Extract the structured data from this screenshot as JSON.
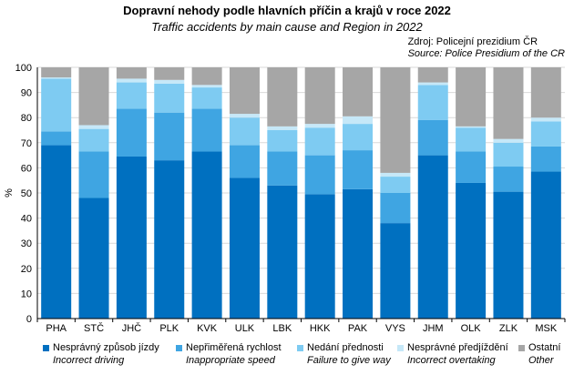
{
  "header": {
    "title": "Dopravní nehody podle hlavních příčin a krajů v roce 2022",
    "subtitle": "Traffic accidents by main cause and Region in 2022",
    "source_cz": "Zdroj: Policejní  prezidium ČR",
    "source_en": "Source: Police Presidium of the CR"
  },
  "colors": {
    "driving": "#0070C0",
    "speed": "#3FA5E2",
    "give_way": "#7ECBF2",
    "overtaking": "#C6E8F8",
    "other": "#A6A6A6"
  },
  "chart_data": {
    "type": "bar",
    "stacked": true,
    "ylabel": "%",
    "ylim": [
      0,
      100
    ],
    "yticks": [
      0,
      10,
      20,
      30,
      40,
      50,
      60,
      70,
      80,
      90,
      100
    ],
    "categories": [
      "PHA",
      "STČ",
      "JHČ",
      "PLK",
      "KVK",
      "ULK",
      "LBK",
      "HKK",
      "PAK",
      "VYS",
      "JHM",
      "OLK",
      "ZLK",
      "MSK"
    ],
    "series": [
      {
        "key": "driving",
        "name": "Nesprávný způsob jízdy",
        "name_en": "Incorrect driving",
        "values": [
          69.0,
          48.0,
          64.5,
          63.0,
          66.5,
          56.0,
          53.0,
          49.5,
          51.5,
          38.0,
          65.0,
          54.0,
          50.5,
          58.5
        ]
      },
      {
        "key": "speed",
        "name": "Nepřiměřená rychlost",
        "name_en": "Inappropriate speed",
        "values": [
          5.5,
          18.5,
          19.0,
          19.0,
          17.0,
          13.0,
          13.5,
          15.5,
          15.5,
          12.0,
          14.0,
          12.5,
          10.0,
          10.0
        ]
      },
      {
        "key": "give_way",
        "name": "Nedání přednosti",
        "name_en": "Failure to give way",
        "values": [
          21.0,
          9.0,
          10.5,
          11.5,
          8.5,
          11.0,
          8.5,
          11.0,
          10.5,
          6.5,
          14.0,
          9.5,
          9.5,
          10.0
        ]
      },
      {
        "key": "overtaking",
        "name": "Nesprávné předjíždění",
        "name_en": "Incorrect overtaking",
        "values": [
          0.5,
          1.5,
          1.5,
          1.5,
          1.0,
          1.5,
          1.5,
          1.5,
          3.0,
          1.5,
          1.0,
          0.5,
          1.5,
          1.5
        ]
      },
      {
        "key": "other",
        "name": "Ostatní",
        "name_en": "Other",
        "values": [
          4.0,
          23.0,
          4.5,
          5.0,
          7.0,
          18.5,
          23.5,
          22.5,
          19.5,
          42.0,
          6.0,
          23.5,
          28.5,
          20.0
        ]
      }
    ]
  }
}
